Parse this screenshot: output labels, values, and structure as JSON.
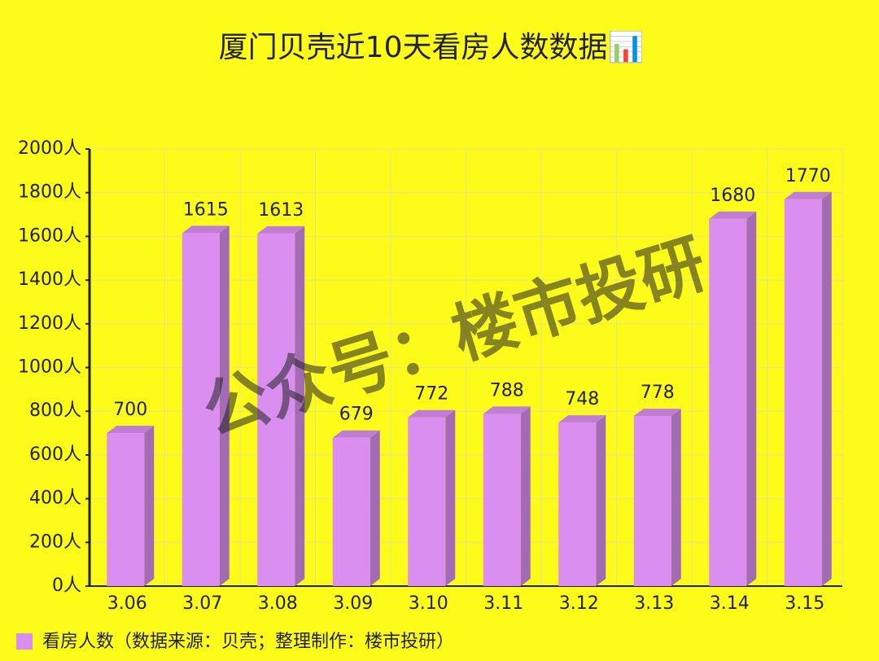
{
  "chart_data": {
    "type": "bar",
    "title": "厦门贝壳近10天看房人数数据📊",
    "watermark": "公众号：楼市投研",
    "categories": [
      "3.06",
      "3.07",
      "3.08",
      "3.09",
      "3.10",
      "3.11",
      "3.12",
      "3.13",
      "3.14",
      "3.15"
    ],
    "series": [
      {
        "name": "看房人数（数据来源：贝壳；整理制作：楼市投研）",
        "color": "#d98ef0",
        "values": [
          700,
          1615,
          1613,
          679,
          772,
          788,
          748,
          778,
          1680,
          1770
        ]
      }
    ],
    "ylim": [
      0,
      2000
    ],
    "yticks": [
      {
        "value": 0,
        "label": "0人"
      },
      {
        "value": 200,
        "label": "200人"
      },
      {
        "value": 400,
        "label": "400人"
      },
      {
        "value": 600,
        "label": "600人"
      },
      {
        "value": 800,
        "label": "800人"
      },
      {
        "value": 1000,
        "label": "1000人"
      },
      {
        "value": 1200,
        "label": "1200人"
      },
      {
        "value": 1400,
        "label": "1400人"
      },
      {
        "value": 1600,
        "label": "1600人"
      },
      {
        "value": 1800,
        "label": "1800人"
      },
      {
        "value": 2000,
        "label": "2000人"
      }
    ],
    "grid": true
  }
}
